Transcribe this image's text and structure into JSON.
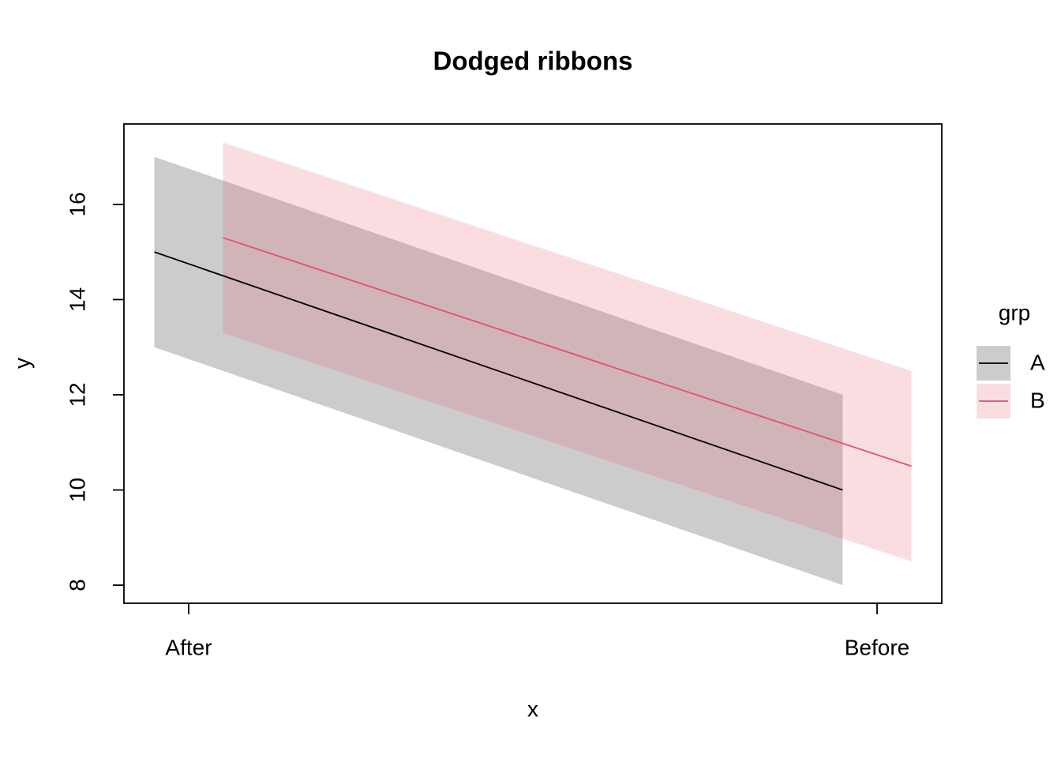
{
  "chart_data": {
    "type": "ribbon",
    "title": "Dodged ribbons",
    "x_label": "x",
    "y_label": "y",
    "categories": [
      "After",
      "Before"
    ],
    "series": [
      {
        "name": "A",
        "color": "#000000",
        "values": [
          15,
          10
        ],
        "lower": [
          13,
          8
        ],
        "upper": [
          17,
          12
        ]
      },
      {
        "name": "B",
        "color": "#DF536B",
        "values": [
          15.3,
          10.5
        ],
        "lower": [
          13.3,
          8.5
        ],
        "upper": [
          17.3,
          12.5
        ]
      }
    ],
    "ylim": [
      7.62,
      17.69
    ],
    "yticks": [
      8,
      10,
      12,
      14,
      16
    ],
    "legend_title": "grp",
    "legend": "right",
    "fill_opacity": 0.2
  }
}
